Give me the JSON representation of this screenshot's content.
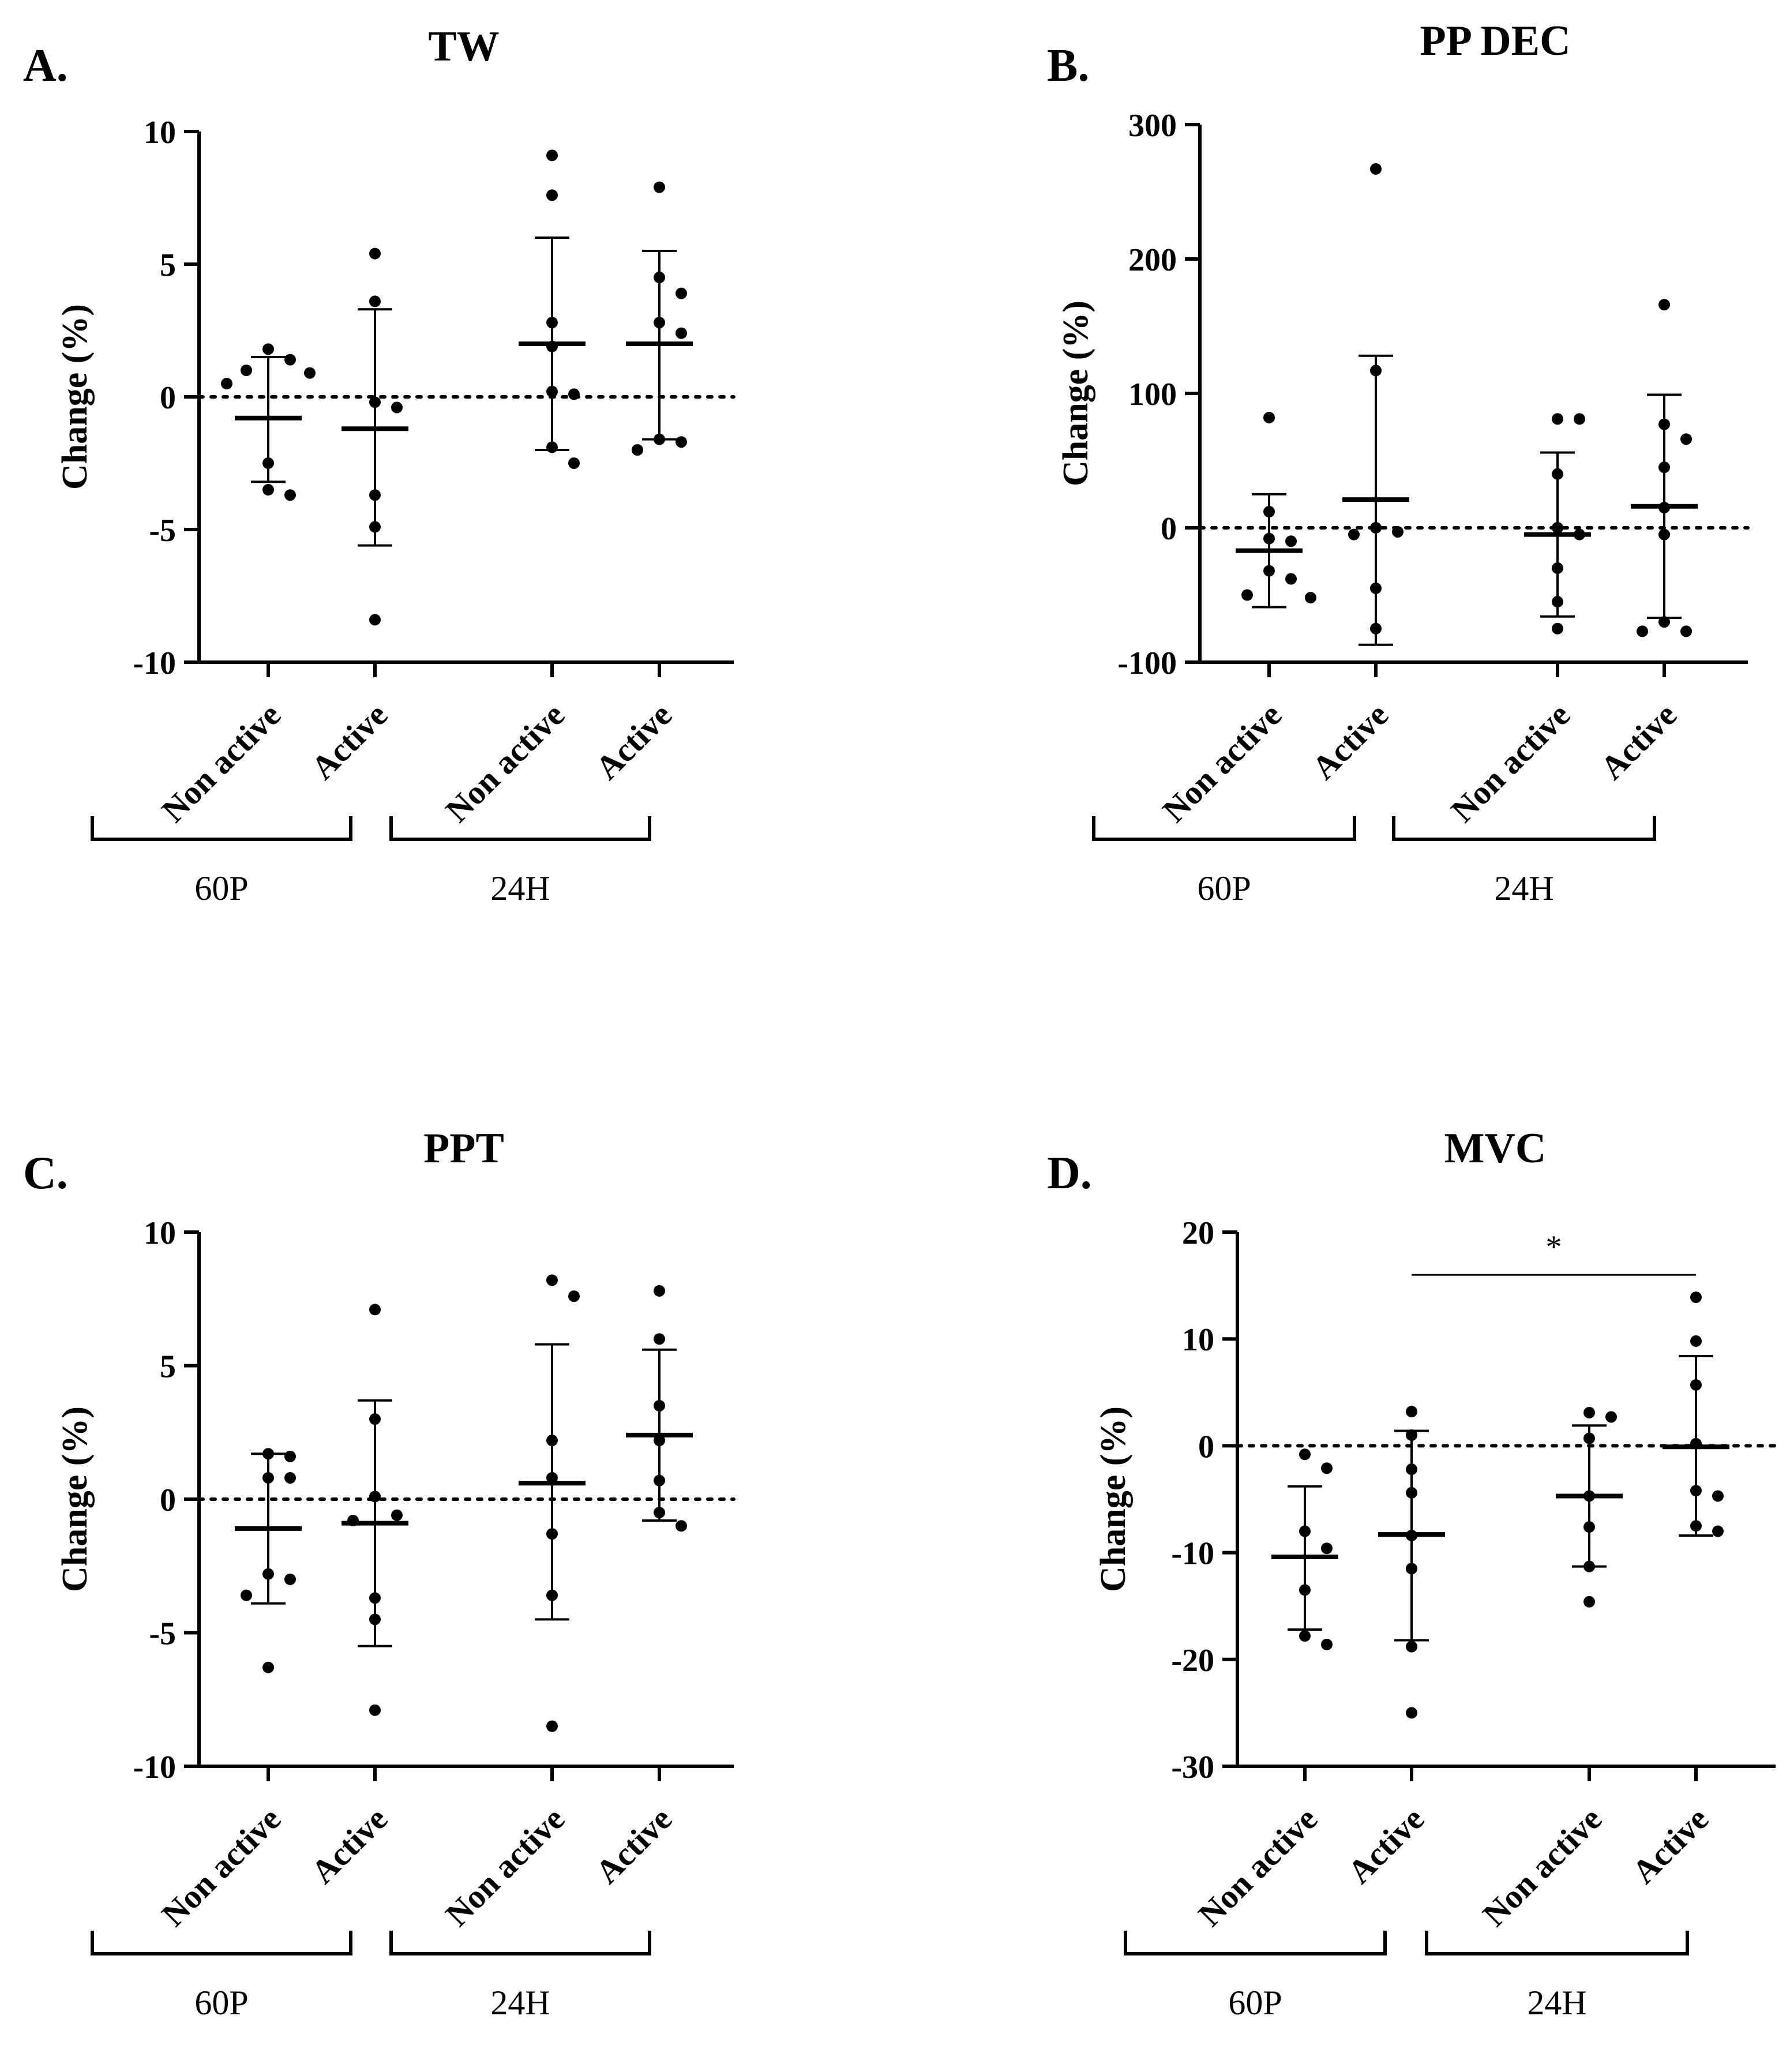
{
  "chart_data": [
    {
      "panel_label": "A.",
      "type": "scatter",
      "title": "TW",
      "ylabel": "Change (%)",
      "ylim": [
        -10,
        10
      ],
      "yticks": [
        10,
        5,
        0,
        -5,
        -10
      ],
      "ytick_labels": [
        "10",
        "5",
        "0",
        "-5",
        "-10"
      ],
      "reference_line_y": 0,
      "group_labels": [
        "60P",
        "24H"
      ],
      "groups": [
        {
          "label": "Non active",
          "group": "60P",
          "mean": -0.8,
          "sd_low": -3.2,
          "sd_high": 1.5,
          "points": [
            1.8,
            1.4,
            1.0,
            0.9,
            0.5,
            -2.5,
            -3.5,
            -3.7
          ]
        },
        {
          "label": "Active",
          "group": "60P",
          "mean": -1.2,
          "sd_low": -5.6,
          "sd_high": 3.3,
          "points": [
            5.4,
            3.6,
            -0.2,
            -0.4,
            -3.7,
            -4.9,
            -8.4
          ]
        },
        {
          "label": "Non active",
          "group": "24H",
          "mean": 2.0,
          "sd_low": -2.0,
          "sd_high": 6.0,
          "points": [
            9.1,
            7.6,
            2.8,
            1.9,
            0.2,
            0.1,
            -1.9,
            -2.5
          ]
        },
        {
          "label": "Active",
          "group": "24H",
          "mean": 2.0,
          "sd_low": -1.6,
          "sd_high": 5.5,
          "points": [
            7.9,
            4.5,
            3.9,
            2.8,
            2.4,
            -1.6,
            -1.7,
            -2.0
          ]
        }
      ]
    },
    {
      "panel_label": "B.",
      "type": "scatter",
      "title": "PP DEC",
      "ylabel": "Change (%)",
      "ylim": [
        -100,
        300
      ],
      "yticks": [
        300,
        200,
        100,
        0,
        -100
      ],
      "ytick_labels": [
        "300",
        "200",
        "100",
        "0",
        "-100"
      ],
      "reference_line_y": 0,
      "group_labels": [
        "60P",
        "24H"
      ],
      "groups": [
        {
          "label": "Non active",
          "group": "60P",
          "mean": -17,
          "sd_low": -59,
          "sd_high": 25,
          "points": [
            82,
            12,
            -8,
            -10,
            -32,
            -38,
            -50,
            -52
          ]
        },
        {
          "label": "Active",
          "group": "60P",
          "mean": 21,
          "sd_low": -87,
          "sd_high": 128,
          "points": [
            267,
            117,
            0,
            -3,
            -5,
            -45,
            -75
          ]
        },
        {
          "label": "Non active",
          "group": "24H",
          "mean": -5,
          "sd_low": -66,
          "sd_high": 56,
          "points": [
            81,
            81,
            40,
            0,
            -5,
            -30,
            -55,
            -75
          ]
        },
        {
          "label": "Active",
          "group": "24H",
          "mean": 16,
          "sd_low": -67,
          "sd_high": 99,
          "points": [
            166,
            77,
            66,
            45,
            15,
            -5,
            -70,
            -77,
            -77
          ]
        }
      ]
    },
    {
      "panel_label": "C.",
      "type": "scatter",
      "title": "PPT",
      "ylabel": "Change (%)",
      "ylim": [
        -10,
        10
      ],
      "yticks": [
        10,
        5,
        0,
        -5,
        -10
      ],
      "ytick_labels": [
        "10",
        "5",
        "0",
        "-5",
        "-10"
      ],
      "reference_line_y": 0,
      "group_labels": [
        "60P",
        "24H"
      ],
      "groups": [
        {
          "label": "Non active",
          "group": "60P",
          "mean": -1.1,
          "sd_low": -3.9,
          "sd_high": 1.7,
          "points": [
            1.7,
            1.6,
            0.8,
            0.8,
            -2.8,
            -3.0,
            -3.6,
            -6.3
          ]
        },
        {
          "label": "Active",
          "group": "60P",
          "mean": -0.9,
          "sd_low": -5.5,
          "sd_high": 3.7,
          "points": [
            7.1,
            3.0,
            0.1,
            -0.8,
            -0.6,
            -3.7,
            -4.5,
            -7.9
          ]
        },
        {
          "label": "Non active",
          "group": "24H",
          "mean": 0.6,
          "sd_low": -4.5,
          "sd_high": 5.8,
          "points": [
            8.2,
            7.6,
            2.2,
            0.8,
            -1.3,
            -3.6,
            -8.5
          ]
        },
        {
          "label": "Active",
          "group": "24H",
          "mean": 2.4,
          "sd_low": -0.8,
          "sd_high": 5.6,
          "points": [
            7.8,
            6.0,
            3.5,
            2.2,
            0.7,
            -0.5,
            -1.0
          ]
        }
      ]
    },
    {
      "panel_label": "D.",
      "type": "scatter",
      "title": "MVC",
      "ylabel": "Change (%)",
      "ylim": [
        -30,
        20
      ],
      "yticks": [
        20,
        10,
        0,
        -10,
        -20,
        -30
      ],
      "ytick_labels": [
        "20",
        "10",
        "0",
        "-10",
        "-20",
        "-30"
      ],
      "reference_line_y": 0,
      "group_labels": [
        "60P",
        "24H"
      ],
      "significance": {
        "label": "*",
        "from": 1,
        "to": 3,
        "y": 16
      },
      "groups": [
        {
          "label": "Non active",
          "group": "60P",
          "mean": -10.4,
          "sd_low": -17.2,
          "sd_high": -3.8,
          "points": [
            -0.8,
            -2.1,
            -8.0,
            -9.6,
            -13.5,
            -17.8,
            -18.6
          ]
        },
        {
          "label": "Active",
          "group": "60P",
          "mean": -8.3,
          "sd_low": -18.2,
          "sd_high": 1.4,
          "points": [
            3.2,
            1.0,
            -2.2,
            -4.4,
            -8.4,
            -11.5,
            -18.8,
            -25.0
          ]
        },
        {
          "label": "Non active",
          "group": "24H",
          "mean": -4.7,
          "sd_low": -11.3,
          "sd_high": 1.9,
          "points": [
            3.1,
            2.7,
            0.7,
            -4.7,
            -7.6,
            -11.3,
            -14.6
          ]
        },
        {
          "label": "Active",
          "group": "24H",
          "mean": -0.1,
          "sd_low": -8.4,
          "sd_high": 8.4,
          "points": [
            13.9,
            9.8,
            5.7,
            0.2,
            -4.2,
            -8.0,
            -7.5,
            -4.7
          ]
        }
      ]
    }
  ]
}
